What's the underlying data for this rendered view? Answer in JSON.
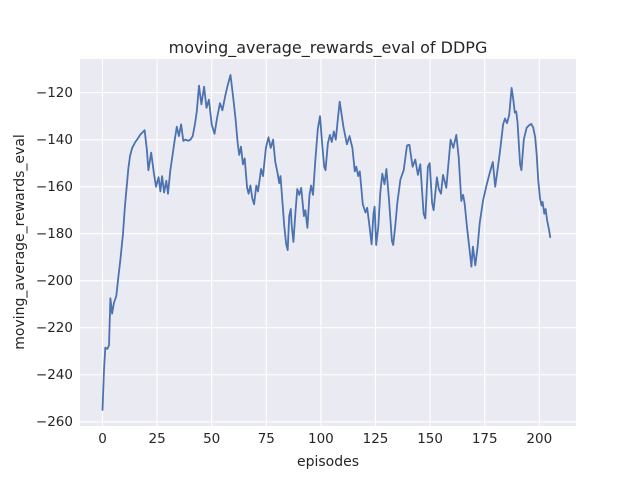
{
  "colors": {
    "figure_bg": "#ffffff",
    "axes_bg": "#eaeaf2",
    "grid": "#ffffff",
    "line": "#4c72b0",
    "text": "#262626"
  },
  "chart_data": {
    "type": "line",
    "title": "moving_average_rewards_eval of DDPG",
    "xlabel": "episodes",
    "ylabel": "moving_average_rewards_eval",
    "legend": "none",
    "grid": true,
    "x_ticks": [
      0,
      25,
      50,
      75,
      100,
      125,
      150,
      175,
      200
    ],
    "x_tick_labels": [
      "0",
      "25",
      "50",
      "75",
      "100",
      "125",
      "150",
      "175",
      "200"
    ],
    "y_ticks": [
      -120,
      -140,
      -160,
      -180,
      -200,
      -220,
      -240,
      -260
    ],
    "y_tick_labels": [
      "−120",
      "−140",
      "−160",
      "−180",
      "−200",
      "−220",
      "−240",
      "−260"
    ],
    "xlim": [
      -10.3,
      216.8
    ],
    "ylim": [
      -261.8,
      -105.7
    ],
    "series": [
      {
        "name": "moving_average_rewards_eval",
        "color": "#4c72b0",
        "x": [
          0,
          0.7,
          1.3,
          2.2,
          3,
          3.6,
          4.4,
          5.2,
          6.3,
          7.2,
          8.2,
          9.4,
          10.2,
          11,
          11.8,
          12.6,
          13.6,
          15,
          16.2,
          17.2,
          18.2,
          19.3,
          20.3,
          21,
          22.3,
          23.5,
          24.5,
          25.7,
          26.5,
          27.3,
          28.2,
          29.2,
          30,
          31,
          32,
          33,
          34,
          35,
          36,
          37,
          38,
          39.2,
          40.3,
          41.3,
          42.3,
          43.2,
          44.2,
          45.3,
          46.5,
          47.6,
          48.7,
          50,
          51.3,
          52.5,
          53.8,
          54.9,
          56.2,
          57.3,
          58.6,
          59.9,
          60.9,
          61.9,
          62.6,
          63.4,
          64.3,
          65.1,
          66.2,
          66.9,
          67.7,
          68.6,
          69.4,
          70.4,
          71.2,
          72.6,
          73.5,
          74.8,
          76,
          77,
          78.1,
          79.1,
          80.2,
          80.9,
          81.5,
          82.3,
          83.2,
          84.1,
          84.8,
          85.5,
          86.2,
          86.6,
          87.4,
          88.4,
          89.2,
          90.1,
          91,
          92.2,
          92.9,
          93.8,
          94.8,
          95.5,
          96.4,
          97.4,
          98.6,
          99.6,
          100.6,
          101.5,
          102.1,
          103.2,
          104.1,
          105,
          105.9,
          106.8,
          107.8,
          108.6,
          110.3,
          111.9,
          113.1,
          114.4,
          115.5,
          116.2,
          117.1,
          117.8,
          119.2,
          120.4,
          121.2,
          122.2,
          123.2,
          124.1,
          124.6,
          125.3,
          126.3,
          127.2,
          128.1,
          129.1,
          130,
          131.2,
          132.5,
          133.1,
          134.1,
          135,
          136.4,
          137.9,
          139.4,
          140.5,
          142,
          143.2,
          144.4,
          145.5,
          147,
          147.8,
          149,
          149.8,
          150.9,
          151.6,
          153.1,
          154,
          155,
          155.9,
          157.4,
          158.5,
          159.4,
          160.6,
          162,
          163.1,
          164.3,
          165.1,
          165.8,
          167,
          168.1,
          168.9,
          169.6,
          170.7,
          171.7,
          172.7,
          174.2,
          175.7,
          177.2,
          178.7,
          179.8,
          181,
          182,
          183.4,
          184.3,
          185.2,
          186.2,
          187.3,
          188.1,
          188.8,
          189.4,
          190,
          191.2,
          191.8,
          192.9,
          194.2,
          195.2,
          196.3,
          197.2,
          198.1,
          198.8,
          199.5,
          200.3,
          201,
          201.5,
          202.3,
          202.9,
          203.6,
          204.4,
          205
        ],
        "y": [
          -255,
          -238,
          -228.5,
          -229,
          -227.5,
          -207.5,
          -214,
          -209.5,
          -206.5,
          -199,
          -191,
          -180,
          -169,
          -161,
          -152.5,
          -147,
          -143.5,
          -141,
          -139.5,
          -138,
          -137,
          -136,
          -144,
          -153,
          -145.5,
          -154,
          -160,
          -156,
          -162,
          -155.5,
          -162.5,
          -157.5,
          -163,
          -153.5,
          -147,
          -140.5,
          -134.5,
          -138.5,
          -133.5,
          -140.5,
          -140,
          -140.5,
          -140,
          -138.5,
          -133.5,
          -128,
          -117,
          -125,
          -117.5,
          -126.5,
          -123,
          -133.5,
          -137.5,
          -130.5,
          -124.5,
          -127.5,
          -121.5,
          -117,
          -112.5,
          -122.5,
          -131,
          -141.5,
          -146.5,
          -143,
          -150.5,
          -148,
          -160.5,
          -163,
          -159.5,
          -165,
          -167.5,
          -159.5,
          -162,
          -152.5,
          -155.5,
          -143.5,
          -139,
          -143.5,
          -140,
          -149.5,
          -154.5,
          -158.5,
          -155.5,
          -165,
          -176.5,
          -184.5,
          -187,
          -172.5,
          -169.5,
          -176,
          -183.5,
          -170,
          -161,
          -163.5,
          -160.5,
          -172.5,
          -170,
          -177.5,
          -163.5,
          -159.5,
          -163.5,
          -149.5,
          -135.5,
          -130,
          -142,
          -151.5,
          -153,
          -141.5,
          -138,
          -141,
          -136.5,
          -140,
          -131,
          -123.8,
          -134.5,
          -142,
          -138.5,
          -143.5,
          -153.5,
          -151.5,
          -155.5,
          -153.5,
          -167.5,
          -171,
          -169,
          -176.5,
          -184.5,
          -171.5,
          -168.5,
          -184.8,
          -177,
          -162.5,
          -154.5,
          -159,
          -152.5,
          -165.5,
          -183,
          -184.8,
          -176,
          -167,
          -157,
          -153,
          -142.5,
          -142.2,
          -151.5,
          -148.5,
          -155,
          -150.5,
          -171.5,
          -173.5,
          -151.5,
          -150,
          -167,
          -170,
          -156,
          -161,
          -163,
          -155,
          -160.5,
          -149,
          -140,
          -143.5,
          -138,
          -147.5,
          -166,
          -163.5,
          -167,
          -178,
          -187,
          -194,
          -185.5,
          -193.5,
          -186,
          -175.5,
          -166,
          -160,
          -154.5,
          -149.5,
          -160,
          -152,
          -145,
          -133.5,
          -131,
          -133,
          -129.5,
          -118,
          -123,
          -128.5,
          -128,
          -132.5,
          -150.5,
          -153,
          -140,
          -135,
          -134,
          -133.3,
          -134.8,
          -139,
          -146.5,
          -157,
          -165,
          -168,
          -166.5,
          -171.5,
          -169.5,
          -174.5,
          -178,
          -181.5
        ]
      }
    ]
  }
}
